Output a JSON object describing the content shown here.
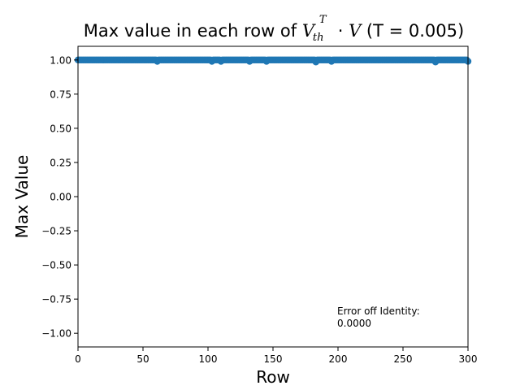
{
  "chart_data": {
    "type": "scatter",
    "title": "Max value in each row of V_th^T · V (T = 0.005)",
    "title_parts": {
      "prefix": "Max value in each row of ",
      "math_base": "V",
      "math_sub": "th",
      "math_sup": "T",
      "math_dot": " · ",
      "math_v": "V",
      "suffix": " (T = 0.005)"
    },
    "xlabel": "Row",
    "ylabel": "Max Value",
    "xlim": [
      0,
      300
    ],
    "ylim": [
      -1.1,
      1.1
    ],
    "xticks": [
      0,
      50,
      100,
      150,
      200,
      250,
      300
    ],
    "yticks": [
      -1.0,
      -0.75,
      -0.5,
      -0.25,
      0.0,
      0.25,
      0.5,
      0.75,
      1.0
    ],
    "ytick_labels": [
      "−1.00",
      "−0.75",
      "−0.50",
      "−0.25",
      "0.00",
      "0.25",
      "0.50",
      "0.75",
      "1.00"
    ],
    "grid": false,
    "marker_color": "#1f77b4",
    "series": [
      {
        "x_start": 0,
        "x_end": 300,
        "x_step": 1,
        "typical_value": 1.0,
        "dips": [
          {
            "x": 61,
            "value": 0.99
          },
          {
            "x": 103,
            "value": 0.99
          },
          {
            "x": 110,
            "value": 0.99
          },
          {
            "x": 132,
            "value": 0.99
          },
          {
            "x": 145,
            "value": 0.99
          },
          {
            "x": 183,
            "value": 0.985
          },
          {
            "x": 195,
            "value": 0.99
          },
          {
            "x": 275,
            "value": 0.985
          },
          {
            "x": 300,
            "value": 0.99
          }
        ]
      }
    ],
    "annotation": {
      "line1": "Error off Identity:",
      "line2": "0.0000"
    }
  }
}
